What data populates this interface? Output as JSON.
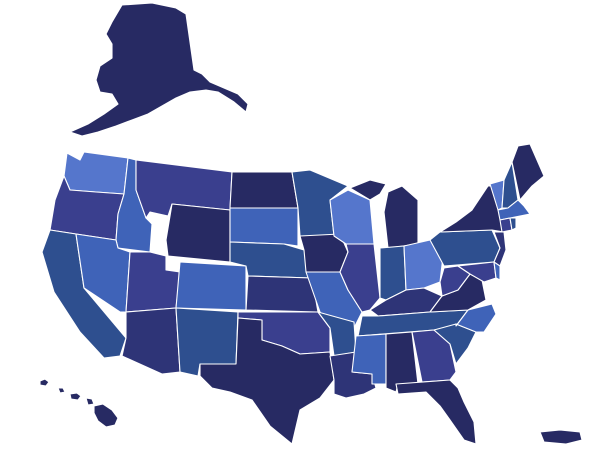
{
  "map": {
    "style": "blue shaded choropleth-style map of the United States with state borders, no text labels",
    "background": "#ffffff",
    "border_color": "#ffffff",
    "palette": {
      "navy": "#272a63",
      "indigo": "#2e3477",
      "violet": "#3a3f8e",
      "steel": "#2e4f8f",
      "azure": "#3f63b8",
      "cornflower": "#5576cc"
    },
    "regions": [
      {
        "id": "alaska",
        "fill": "navy"
      },
      {
        "id": "hawaii",
        "fill": "navy"
      },
      {
        "id": "puerto-rico",
        "fill": "navy"
      },
      {
        "id": "washington",
        "fill": "cornflower"
      },
      {
        "id": "oregon",
        "fill": "violet"
      },
      {
        "id": "california",
        "fill": "steel"
      },
      {
        "id": "idaho",
        "fill": "azure"
      },
      {
        "id": "nevada",
        "fill": "azure"
      },
      {
        "id": "montana",
        "fill": "violet"
      },
      {
        "id": "wyoming",
        "fill": "navy"
      },
      {
        "id": "utah",
        "fill": "violet"
      },
      {
        "id": "arizona",
        "fill": "indigo"
      },
      {
        "id": "colorado",
        "fill": "azure"
      },
      {
        "id": "new-mexico",
        "fill": "steel"
      },
      {
        "id": "north-dakota",
        "fill": "navy"
      },
      {
        "id": "south-dakota",
        "fill": "azure"
      },
      {
        "id": "nebraska",
        "fill": "steel"
      },
      {
        "id": "kansas",
        "fill": "indigo"
      },
      {
        "id": "oklahoma",
        "fill": "violet"
      },
      {
        "id": "texas",
        "fill": "navy"
      },
      {
        "id": "minnesota",
        "fill": "steel"
      },
      {
        "id": "iowa",
        "fill": "navy"
      },
      {
        "id": "missouri",
        "fill": "azure"
      },
      {
        "id": "arkansas",
        "fill": "steel"
      },
      {
        "id": "louisiana",
        "fill": "indigo"
      },
      {
        "id": "wisconsin",
        "fill": "cornflower"
      },
      {
        "id": "illinois",
        "fill": "violet"
      },
      {
        "id": "michigan",
        "fill": "navy"
      },
      {
        "id": "indiana",
        "fill": "steel"
      },
      {
        "id": "ohio",
        "fill": "cornflower"
      },
      {
        "id": "kentucky",
        "fill": "indigo"
      },
      {
        "id": "tennessee",
        "fill": "steel"
      },
      {
        "id": "mississippi",
        "fill": "azure"
      },
      {
        "id": "alabama",
        "fill": "navy"
      },
      {
        "id": "georgia",
        "fill": "violet"
      },
      {
        "id": "florida",
        "fill": "navy"
      },
      {
        "id": "south-carolina",
        "fill": "steel"
      },
      {
        "id": "north-carolina",
        "fill": "azure"
      },
      {
        "id": "virginia",
        "fill": "navy"
      },
      {
        "id": "west-virginia",
        "fill": "violet"
      },
      {
        "id": "pennsylvania",
        "fill": "steel"
      },
      {
        "id": "new-york",
        "fill": "navy"
      },
      {
        "id": "new-jersey",
        "fill": "indigo"
      },
      {
        "id": "maryland",
        "fill": "violet"
      },
      {
        "id": "delaware",
        "fill": "azure"
      },
      {
        "id": "vermont",
        "fill": "cornflower"
      },
      {
        "id": "new-hampshire",
        "fill": "steel"
      },
      {
        "id": "maine",
        "fill": "navy"
      },
      {
        "id": "massachusetts",
        "fill": "azure"
      },
      {
        "id": "connecticut",
        "fill": "violet"
      },
      {
        "id": "rhode-island",
        "fill": "steel"
      }
    ]
  }
}
